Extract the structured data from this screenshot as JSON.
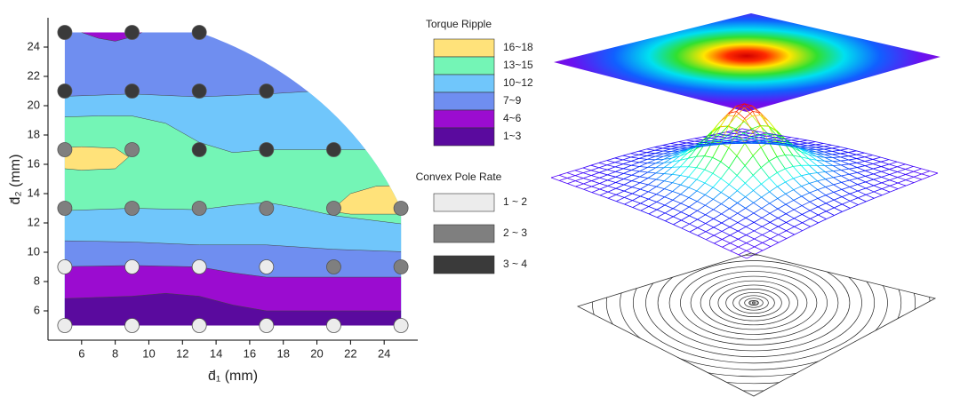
{
  "chart_data": {
    "type": "contour",
    "x_label": "d̄₁ (mm)",
    "y_label": "d̄₂ (mm)",
    "xlim": [
      4,
      26
    ],
    "ylim": [
      4,
      26
    ],
    "xticks": [
      6,
      8,
      10,
      12,
      14,
      16,
      18,
      20,
      22,
      24
    ],
    "yticks": [
      6,
      8,
      10,
      12,
      14,
      16,
      18,
      20,
      22,
      24
    ],
    "levels": {
      "title": "Torque Ripple",
      "labels": [
        "16~18",
        "13~15",
        "10~12",
        "7~9",
        "4~6",
        "1~3"
      ],
      "colors": [
        "#ffe27a",
        "#74f5b6",
        "#70c6fb",
        "#6f8ef0",
        "#9b0cd0",
        "#5a0a9e"
      ]
    },
    "legend_title": "Convex Pole Rate",
    "series": [
      {
        "name": "1 ~ 2",
        "color": "#ececec",
        "x": [
          5,
          9,
          13,
          17,
          5,
          9,
          13,
          17,
          21,
          25
        ],
        "y": [
          9,
          9,
          9,
          9,
          5,
          5,
          5,
          5,
          5,
          5
        ]
      },
      {
        "name": "2 ~ 3",
        "color": "#7f7f7f",
        "x": [
          5,
          9,
          5,
          9,
          13,
          17,
          21,
          25,
          21,
          25
        ],
        "y": [
          17,
          17,
          13,
          13,
          13,
          13,
          13,
          13,
          9,
          9
        ]
      },
      {
        "name": "3 ~ 4",
        "color": "#3a3a3a",
        "x": [
          5,
          9,
          13,
          5,
          9,
          13,
          17,
          13,
          17,
          21
        ],
        "y": [
          25,
          25,
          25,
          21,
          21,
          21,
          21,
          17,
          17,
          17
        ]
      }
    ]
  }
}
